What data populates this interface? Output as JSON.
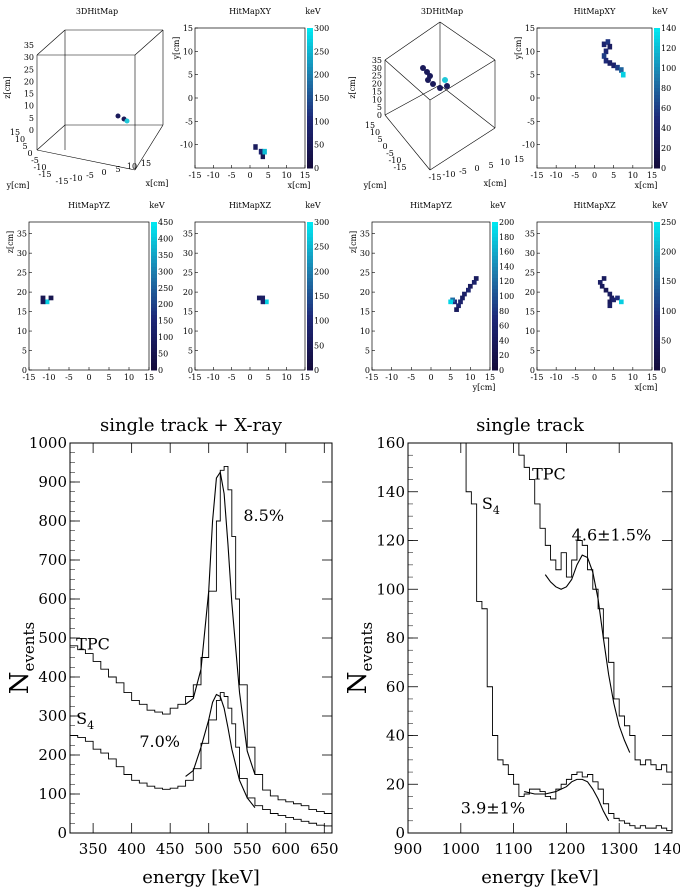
{
  "panels": [
    {
      "id": "left-3d",
      "title": "3DHitMap",
      "z_label": "z[cm]",
      "y_label": "y[cm]",
      "x_label": "x[cm]",
      "z_ticks": [
        "35",
        "30",
        "25",
        "20",
        "15",
        "10",
        "5",
        "0"
      ],
      "y_ticks": [
        "15",
        "10",
        "5",
        "0",
        "-5",
        "-10",
        "-15"
      ],
      "x_ticks": [
        "-15",
        "-10",
        "-5",
        "0",
        "5",
        "10",
        "15"
      ]
    },
    {
      "id": "right-3d",
      "title": "3DHitMap",
      "z_label": "z[cm]",
      "y_label": "y[cm]",
      "x_label": "x[cm]",
      "z_ticks": [
        "35",
        "30",
        "25",
        "20",
        "15",
        "10",
        "5",
        "0"
      ],
      "y_ticks": [
        "15",
        "10",
        "5",
        "0",
        "-5",
        "-10",
        "-15"
      ],
      "x_ticks": [
        "-15",
        "-10",
        "-5",
        "0",
        "5",
        "10",
        "15"
      ]
    }
  ],
  "chart_data": [
    {
      "type": "heatmap",
      "id": "l-xy",
      "title": "HitMapXY",
      "xlabel": "x[cm]",
      "ylabel": "y[cm]",
      "unit": "keV",
      "xlim": [
        -15,
        15
      ],
      "ylim": [
        -15,
        15
      ],
      "xticks": [
        -15,
        -10,
        -5,
        0,
        5,
        10,
        15
      ],
      "yticks": [
        -10,
        -5,
        0,
        5,
        10,
        15
      ],
      "zlim": [
        0,
        300
      ],
      "zticks": [
        0,
        50,
        100,
        150,
        200,
        250,
        300
      ],
      "cells": [
        [
          1.5,
          -10.5,
          60
        ],
        [
          3,
          -11.5,
          90
        ],
        [
          3.5,
          -12.5,
          40
        ],
        [
          4,
          -11.5,
          260
        ]
      ]
    },
    {
      "type": "heatmap",
      "id": "r-xy",
      "title": "HitMapXY",
      "xlabel": "x[cm]",
      "ylabel": "y[cm]",
      "unit": "keV",
      "xlim": [
        -15,
        15
      ],
      "ylim": [
        -15,
        15
      ],
      "xticks": [
        -15,
        -10,
        -5,
        0,
        5,
        10,
        15
      ],
      "yticks": [
        -10,
        -5,
        0,
        5,
        10,
        15
      ],
      "zlim": [
        0,
        140
      ],
      "zticks": [
        0,
        20,
        40,
        60,
        80,
        100,
        120,
        140
      ],
      "cells": [
        [
          2.5,
          11.5,
          40
        ],
        [
          3.5,
          12,
          55
        ],
        [
          4,
          11,
          30
        ],
        [
          3,
          10,
          45
        ],
        [
          2.5,
          9,
          60
        ],
        [
          3,
          8,
          50
        ],
        [
          4,
          7.5,
          35
        ],
        [
          5,
          7,
          40
        ],
        [
          6,
          6.5,
          60
        ],
        [
          7,
          6,
          80
        ],
        [
          7.5,
          5,
          130
        ]
      ]
    },
    {
      "type": "heatmap",
      "id": "l-yz",
      "title": "HitMapYZ",
      "xlabel": "",
      "ylabel": "z[cm]",
      "unit": "keV",
      "xlim": [
        -15,
        15
      ],
      "ylim": [
        0,
        38
      ],
      "xticks": [
        -15,
        -10,
        -5,
        0,
        5,
        10,
        15
      ],
      "yticks": [
        0,
        5,
        10,
        15,
        20,
        25,
        30,
        35
      ],
      "zlim": [
        0,
        450
      ],
      "zticks": [
        0,
        50,
        100,
        150,
        200,
        250,
        300,
        350,
        400,
        450
      ],
      "cells": [
        [
          -11.5,
          18.5,
          60
        ],
        [
          -10.5,
          17.5,
          420
        ],
        [
          -9.5,
          18.5,
          50
        ],
        [
          -11.5,
          17.5,
          80
        ]
      ]
    },
    {
      "type": "heatmap",
      "id": "l-xz",
      "title": "HitMapXZ",
      "xlabel": "",
      "ylabel": "",
      "unit": "keV",
      "xlim": [
        -15,
        15
      ],
      "ylim": [
        0,
        38
      ],
      "xticks": [
        -15,
        -10,
        -5,
        0,
        5,
        10,
        15
      ],
      "yticks": [
        0,
        5,
        10,
        15,
        20,
        25,
        30,
        35
      ],
      "zlim": [
        0,
        300
      ],
      "zticks": [
        0,
        50,
        100,
        150,
        200,
        250,
        300
      ],
      "cells": [
        [
          2.5,
          18.5,
          60
        ],
        [
          3.5,
          18.5,
          70
        ],
        [
          4.5,
          17.5,
          280
        ],
        [
          3.5,
          17.5,
          80
        ]
      ]
    },
    {
      "type": "heatmap",
      "id": "r-yz",
      "title": "HitMapYZ",
      "xlabel": "y[cm]",
      "ylabel": "z[cm]",
      "unit": "keV",
      "xlim": [
        -15,
        15
      ],
      "ylim": [
        0,
        38
      ],
      "xticks": [
        -15,
        -10,
        -5,
        0,
        5,
        10,
        15
      ],
      "yticks": [
        0,
        5,
        10,
        15,
        20,
        25,
        30,
        35
      ],
      "zlim": [
        0,
        200
      ],
      "zticks": [
        0,
        20,
        40,
        60,
        80,
        100,
        120,
        140,
        160,
        180,
        200
      ],
      "cells": [
        [
          11.5,
          23.5,
          40
        ],
        [
          11,
          22.5,
          55
        ],
        [
          10,
          21.5,
          40
        ],
        [
          9.5,
          20.5,
          60
        ],
        [
          8.5,
          19.5,
          50
        ],
        [
          8,
          18.5,
          45
        ],
        [
          7.5,
          17.5,
          55
        ],
        [
          7,
          16.5,
          60
        ],
        [
          6.5,
          15.5,
          40
        ],
        [
          6,
          17.5,
          70
        ],
        [
          5.5,
          18,
          120
        ],
        [
          5,
          17.5,
          190
        ]
      ]
    },
    {
      "type": "heatmap",
      "id": "r-xz",
      "title": "HitMapXZ",
      "xlabel": "x[cm]",
      "ylabel": "",
      "unit": "keV",
      "xlim": [
        -15,
        15
      ],
      "ylim": [
        0,
        38
      ],
      "xticks": [
        -15,
        -10,
        -5,
        0,
        5,
        10,
        15
      ],
      "yticks": [
        0,
        5,
        10,
        15,
        20,
        25,
        30,
        35
      ],
      "zlim": [
        0,
        250
      ],
      "zticks": [
        0,
        50,
        100,
        150,
        200,
        250
      ],
      "cells": [
        [
          2.5,
          23.5,
          50
        ],
        [
          1.5,
          22.5,
          60
        ],
        [
          2,
          21.5,
          45
        ],
        [
          3,
          20.5,
          40
        ],
        [
          4,
          19.5,
          55
        ],
        [
          4.5,
          18.5,
          50
        ],
        [
          4,
          17.5,
          45
        ],
        [
          4,
          16.5,
          60
        ],
        [
          5,
          18,
          70
        ],
        [
          6,
          18.5,
          90
        ],
        [
          7,
          17.5,
          230
        ]
      ]
    },
    {
      "type": "line",
      "id": "spec-left",
      "title": "single track + X-ray",
      "xlabel": "energy [keV]",
      "ylabel": "N",
      "ylabel_sub": "events",
      "xlim": [
        320,
        660
      ],
      "ylim": [
        0,
        1000
      ],
      "xticks": [
        350,
        400,
        450,
        500,
        550,
        600,
        650
      ],
      "yticks": [
        0,
        100,
        200,
        300,
        400,
        500,
        600,
        700,
        800,
        900,
        1000
      ],
      "series": [
        {
          "name": "TPC",
          "style": "step",
          "x": [
            320,
            330,
            340,
            350,
            360,
            370,
            380,
            390,
            400,
            410,
            420,
            430,
            440,
            450,
            460,
            470,
            480,
            490,
            500,
            505,
            510,
            515,
            520,
            525,
            530,
            540,
            550,
            560,
            570,
            580,
            590,
            600,
            610,
            620,
            630,
            640,
            650,
            660
          ],
          "y": [
            480,
            470,
            460,
            440,
            420,
            400,
            385,
            360,
            340,
            330,
            315,
            310,
            305,
            320,
            330,
            350,
            380,
            450,
            620,
            800,
            930,
            940,
            880,
            760,
            600,
            380,
            220,
            150,
            110,
            95,
            85,
            80,
            75,
            70,
            60,
            55,
            50,
            45
          ]
        },
        {
          "name": "S4",
          "style": "step",
          "x": [
            320,
            330,
            340,
            350,
            360,
            370,
            380,
            390,
            400,
            410,
            420,
            430,
            440,
            450,
            460,
            470,
            480,
            490,
            500,
            505,
            510,
            515,
            520,
            525,
            530,
            540,
            550,
            560,
            570,
            580,
            590,
            600,
            610,
            620,
            630,
            640,
            650,
            660
          ],
          "y": [
            250,
            245,
            235,
            215,
            205,
            190,
            170,
            150,
            135,
            128,
            120,
            115,
            112,
            115,
            120,
            135,
            165,
            230,
            290,
            340,
            360,
            350,
            320,
            280,
            220,
            140,
            90,
            70,
            60,
            50,
            45,
            40,
            35,
            30,
            25,
            20,
            18,
            15
          ]
        },
        {
          "name": "TPC fit",
          "style": "curve",
          "x": [
            470,
            480,
            490,
            500,
            505,
            510,
            515,
            520,
            525,
            530,
            540,
            550,
            560
          ],
          "y": [
            330,
            345,
            420,
            620,
            800,
            910,
            925,
            870,
            740,
            590,
            360,
            210,
            150
          ]
        },
        {
          "name": "S4 fit",
          "style": "curve",
          "x": [
            470,
            480,
            490,
            500,
            505,
            510,
            515,
            520,
            525,
            530,
            540,
            550,
            560
          ],
          "y": [
            145,
            160,
            220,
            290,
            335,
            355,
            350,
            320,
            270,
            215,
            135,
            90,
            65
          ]
        }
      ],
      "annotations": [
        {
          "text": "TPC",
          "x": 328,
          "y": 470
        },
        {
          "text": "S",
          "sub": "4",
          "x": 328,
          "y": 280
        },
        {
          "text": "8.5%",
          "x": 545,
          "y": 800
        },
        {
          "text": "7.0%",
          "x": 410,
          "y": 220
        }
      ]
    },
    {
      "type": "line",
      "id": "spec-right",
      "title": "single track",
      "xlabel": "energy [keV]",
      "ylabel": "N",
      "ylabel_sub": "events",
      "xlim": [
        900,
        1400
      ],
      "ylim": [
        0,
        160
      ],
      "xticks": [
        900,
        1000,
        1100,
        1200,
        1300,
        1400
      ],
      "yticks": [
        0,
        20,
        40,
        60,
        80,
        100,
        120,
        140,
        160
      ],
      "series": [
        {
          "name": "TPC",
          "style": "step",
          "x": [
            1100,
            1110,
            1120,
            1130,
            1140,
            1150,
            1160,
            1170,
            1180,
            1190,
            1200,
            1210,
            1220,
            1230,
            1240,
            1250,
            1260,
            1270,
            1280,
            1290,
            1300,
            1310,
            1320,
            1330,
            1340,
            1350,
            1360,
            1370,
            1380,
            1390,
            1400
          ],
          "y": [
            160,
            155,
            150,
            145,
            135,
            125,
            118,
            112,
            108,
            115,
            105,
            112,
            120,
            118,
            108,
            100,
            92,
            80,
            70,
            55,
            48,
            44,
            40,
            30,
            28,
            30,
            28,
            26,
            28,
            25,
            22
          ]
        },
        {
          "name": "S4",
          "style": "step",
          "x": [
            1000,
            1010,
            1020,
            1030,
            1040,
            1050,
            1060,
            1070,
            1080,
            1090,
            1100,
            1110,
            1120,
            1130,
            1140,
            1150,
            1160,
            1170,
            1180,
            1190,
            1200,
            1210,
            1220,
            1230,
            1240,
            1250,
            1260,
            1270,
            1280,
            1290,
            1300,
            1310,
            1320,
            1330,
            1340,
            1350,
            1360,
            1370,
            1380,
            1390,
            1400
          ],
          "y": [
            160,
            140,
            135,
            95,
            92,
            60,
            40,
            30,
            28,
            24,
            20,
            15,
            16,
            18,
            18,
            17,
            15,
            14,
            18,
            20,
            22,
            24,
            25,
            23,
            24,
            21,
            18,
            12,
            8,
            6,
            5,
            4,
            3,
            2,
            3,
            2,
            2,
            3,
            2,
            1,
            2
          ]
        },
        {
          "name": "TPC fit",
          "style": "curve",
          "x": [
            1160,
            1170,
            1180,
            1190,
            1200,
            1210,
            1220,
            1230,
            1240,
            1250,
            1260,
            1270,
            1280,
            1290,
            1300,
            1310,
            1320
          ],
          "y": [
            106,
            103,
            101,
            100,
            101,
            104,
            110,
            114,
            113,
            107,
            96,
            80,
            65,
            53,
            44,
            38,
            33
          ]
        },
        {
          "name": "S4 fit",
          "style": "curve",
          "x": [
            1120,
            1140,
            1160,
            1180,
            1200,
            1210,
            1220,
            1230,
            1240,
            1250,
            1260,
            1270,
            1280
          ],
          "y": [
            17,
            16,
            16,
            17,
            19,
            21,
            22,
            22,
            21,
            18,
            14,
            9,
            5
          ]
        }
      ],
      "annotations": [
        {
          "text": "TPC",
          "x": 1135,
          "y": 145
        },
        {
          "text": "S",
          "sub": "4",
          "x": 1040,
          "y": 133
        },
        {
          "text": "4.6±1.5%",
          "x": 1210,
          "y": 120
        },
        {
          "text": "3.9±1%",
          "x": 1000,
          "y": 8
        }
      ]
    }
  ]
}
